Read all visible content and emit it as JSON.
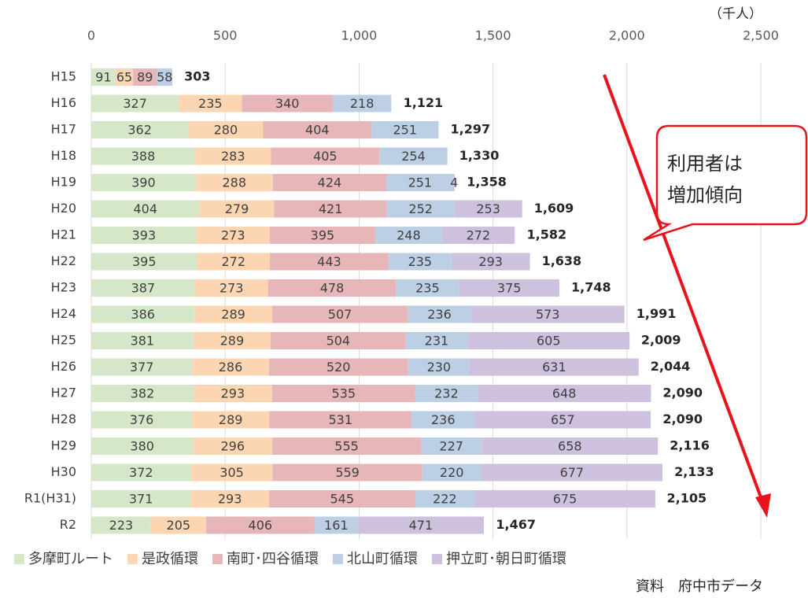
{
  "chart_data": {
    "type": "stacked_barh",
    "unit_label": "（千人）",
    "categories": [
      "H15",
      "H16",
      "H17",
      "H18",
      "H19",
      "H20",
      "H21",
      "H22",
      "H23",
      "H24",
      "H25",
      "H26",
      "H27",
      "H28",
      "H29",
      "H30",
      "R1(H31)",
      "R2"
    ],
    "series": [
      {
        "name": "多摩町ルート",
        "color": "#d6e7c9",
        "values": [
          91,
          327,
          362,
          388,
          390,
          404,
          393,
          395,
          387,
          386,
          381,
          377,
          382,
          376,
          380,
          372,
          371,
          223
        ]
      },
      {
        "name": "是政循環",
        "color": "#fcd6b3",
        "values": [
          65,
          235,
          280,
          283,
          288,
          279,
          273,
          272,
          273,
          289,
          289,
          286,
          293,
          289,
          296,
          305,
          293,
          205
        ]
      },
      {
        "name": "南町･四谷循環",
        "color": "#e7b6b8",
        "values": [
          89,
          340,
          404,
          405,
          424,
          421,
          395,
          443,
          478,
          507,
          504,
          520,
          535,
          531,
          555,
          559,
          545,
          406
        ]
      },
      {
        "name": "北山町循環",
        "color": "#bccfe5",
        "values": [
          58,
          218,
          251,
          254,
          251,
          252,
          248,
          235,
          235,
          236,
          231,
          230,
          232,
          236,
          227,
          220,
          222,
          161
        ]
      },
      {
        "name": "押立町･朝日町循環",
        "color": "#cdc1dd",
        "values": [
          null,
          null,
          null,
          null,
          4,
          253,
          272,
          293,
          375,
          573,
          605,
          631,
          648,
          657,
          658,
          677,
          675,
          471
        ]
      }
    ],
    "totals": [
      303,
      1121,
      1297,
      1330,
      1358,
      1609,
      1582,
      1638,
      1748,
      1991,
      2009,
      2044,
      2090,
      2090,
      2116,
      2133,
      2105,
      1467
    ],
    "total_labels": [
      "303",
      "1,121",
      "1,297",
      "1,330",
      "1,358",
      "1,609",
      "1,582",
      "1,638",
      "1,748",
      "1,991",
      "2,009",
      "2,044",
      "2,090",
      "2,090",
      "2,116",
      "2,133",
      "2,105",
      "1,467"
    ],
    "xlim": [
      0,
      2500
    ],
    "xticks": [
      0,
      500,
      {
        "value": 1000,
        "label": "1,000"
      },
      {
        "value": 1500,
        "label": "1,500"
      },
      {
        "value": 2000,
        "label": "2,000"
      },
      {
        "value": 2500,
        "label": "2,500"
      }
    ],
    "grid": true,
    "annotation": [
      "利用者は",
      "増加傾向"
    ],
    "source": "資料　府中市データ"
  }
}
